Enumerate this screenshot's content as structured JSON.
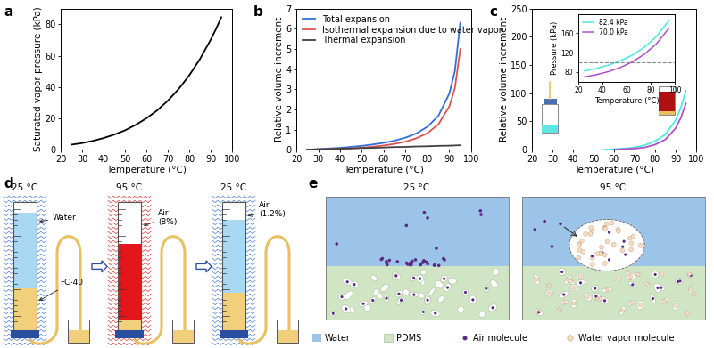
{
  "chart_data": [
    {
      "panel": "a",
      "type": "line",
      "x_label": "Temperature (°C)",
      "y_label": "Saturated vapor pressure (kPa)",
      "x": [
        25,
        30,
        35,
        40,
        45,
        50,
        55,
        60,
        65,
        70,
        75,
        80,
        85,
        90,
        92.5,
        95
      ],
      "values": [
        3.2,
        4.2,
        5.6,
        7.4,
        9.6,
        12.3,
        15.8,
        20.0,
        25.0,
        31.2,
        38.6,
        47.4,
        57.8,
        70.1,
        77.0,
        84.5
      ],
      "color": "#000000",
      "xlim": [
        20,
        100
      ],
      "xticks": [
        20,
        30,
        40,
        50,
        60,
        70,
        80,
        90,
        100
      ],
      "ylim": [
        0,
        90
      ],
      "yticks": [
        0,
        20,
        40,
        60,
        80
      ],
      "grid": false
    },
    {
      "panel": "b",
      "type": "line",
      "x_label": "Temperature (°C)",
      "y_label": "Relative volume increment",
      "x": [
        25,
        30,
        35,
        40,
        45,
        50,
        55,
        60,
        65,
        70,
        75,
        80,
        85,
        90,
        92.5,
        95
      ],
      "series": [
        {
          "name": "Total expansion",
          "color": "#2f6fd8",
          "values": [
            0,
            0.03,
            0.06,
            0.09,
            0.14,
            0.19,
            0.26,
            0.34,
            0.45,
            0.6,
            0.81,
            1.14,
            1.68,
            2.79,
            3.89,
            6.3
          ]
        },
        {
          "name": "Isothermal expansion due to water vapor",
          "color": "#e05050",
          "values": [
            0,
            0.01,
            0.03,
            0.05,
            0.07,
            0.1,
            0.15,
            0.21,
            0.29,
            0.4,
            0.57,
            0.82,
            1.26,
            2.15,
            3.04,
            5.0
          ]
        },
        {
          "name": "Thermal expansion",
          "color": "#404040",
          "values": [
            0,
            0.02,
            0.03,
            0.05,
            0.06,
            0.08,
            0.09,
            0.11,
            0.13,
            0.14,
            0.16,
            0.17,
            0.19,
            0.2,
            0.21,
            0.22
          ]
        }
      ],
      "legend": "upper left",
      "xlim": [
        20,
        100
      ],
      "xticks": [
        20,
        30,
        40,
        50,
        60,
        70,
        80,
        90,
        100
      ],
      "ylim": [
        0,
        7
      ],
      "yticks": [
        0,
        1,
        2,
        3,
        4,
        5,
        6,
        7
      ],
      "grid": false
    },
    {
      "panel": "c",
      "type": "line",
      "x_label": "Temperature (°C)",
      "y_label": "Relative volume increment",
      "series": [
        {
          "color": "#4de8e0",
          "x": [
            55,
            60,
            65,
            70,
            75,
            80,
            85,
            90,
            92.5,
            95
          ],
          "values": [
            0,
            1,
            2,
            4,
            8,
            15,
            27,
            52,
            74,
            105
          ]
        },
        {
          "color": "#b050c8",
          "x": [
            60,
            65,
            70,
            75,
            80,
            85,
            90,
            92.5,
            95
          ],
          "values": [
            0,
            1,
            2,
            4,
            9,
            18,
            38,
            56,
            82
          ]
        }
      ],
      "xlim": [
        20,
        100
      ],
      "xticks": [
        20,
        30,
        40,
        50,
        60,
        70,
        80,
        90,
        100
      ],
      "ylim": [
        0,
        250
      ],
      "yticks": [
        0,
        50,
        100,
        150,
        200,
        250
      ],
      "grid": false,
      "inset": {
        "type": "line",
        "x_label": "Temperature (°C)",
        "y_label": "Pressure (kPa)",
        "x": [
          25,
          35,
          45,
          55,
          65,
          75,
          85,
          95
        ],
        "series": [
          {
            "name": "82.4 kPa",
            "color": "#4de8e0",
            "values": [
              82.4,
              87.6,
              94.4,
              103.3,
              115.3,
              131.6,
              153.7,
              186.0
            ]
          },
          {
            "name": "70.0 kPa",
            "color": "#b050c8",
            "values": [
              70.0,
              74.8,
              81.1,
              89.6,
              101.3,
              117.2,
              138.8,
              170.0
            ]
          }
        ],
        "reference_line": 100,
        "legend": "upper left",
        "xlim": [
          20,
          100
        ],
        "xticks": [
          20,
          40,
          60,
          80,
          100
        ],
        "ylim": [
          60,
          200
        ],
        "yticks": [
          80,
          120,
          160
        ],
        "grid": false
      }
    }
  ],
  "diagram_d": {
    "panel": "d",
    "stages": [
      {
        "title": "25 °C",
        "labels": [
          "Water",
          "FC-40"
        ]
      },
      {
        "title": "95 °C",
        "labels": [
          "Air\n(8%)"
        ]
      },
      {
        "title": "25 °C",
        "labels": [
          "Air\n(1.2%)"
        ]
      }
    ]
  },
  "diagram_e": {
    "panel": "e",
    "scenes": [
      "25 °C",
      "95 °C"
    ],
    "key": [
      "Water",
      "PDMS",
      "Air molecule",
      "Water vapor molecule"
    ]
  }
}
